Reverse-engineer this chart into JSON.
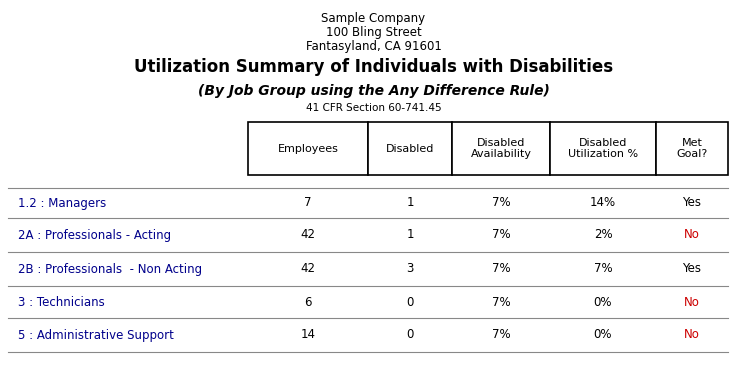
{
  "company_line1": "Sample Company",
  "company_line2": "100 Bling Street",
  "company_line3": "Fantasyland, CA 91601",
  "title_main": "Utilization Summary of Individuals with Disabilities",
  "title_sub": "(By Job Group using the Any Difference Rule)",
  "title_reg": "41 CFR Section 60-741.45",
  "col_headers": [
    "Employees",
    "Disabled",
    "Disabled\nAvailability",
    "Disabled\nUtilization %",
    "Met\nGoal?"
  ],
  "rows": [
    {
      "label": "1.2 : Managers",
      "employees": "7",
      "disabled": "1",
      "avail": "7%",
      "util": "14%",
      "met": "Yes",
      "met_color": "#000000"
    },
    {
      "label": "2A : Professionals - Acting",
      "employees": "42",
      "disabled": "1",
      "avail": "7%",
      "util": "2%",
      "met": "No",
      "met_color": "#cc0000"
    },
    {
      "label": "2B : Professionals  - Non Acting",
      "employees": "42",
      "disabled": "3",
      "avail": "7%",
      "util": "7%",
      "met": "Yes",
      "met_color": "#000000"
    },
    {
      "label": "3 : Technicians",
      "employees": "6",
      "disabled": "0",
      "avail": "7%",
      "util": "0%",
      "met": "No",
      "met_color": "#cc0000"
    },
    {
      "label": "5 : Administrative Support",
      "employees": "14",
      "disabled": "0",
      "avail": "7%",
      "util": "0%",
      "met": "No",
      "met_color": "#cc0000"
    }
  ],
  "background_color": "#ffffff",
  "header_box_color": "#ffffff",
  "header_box_edge": "#000000",
  "row_divider_color": "#888888",
  "text_color": "#000000",
  "label_color": "#00008b",
  "fig_width": 7.47,
  "fig_height": 3.8,
  "dpi": 100
}
